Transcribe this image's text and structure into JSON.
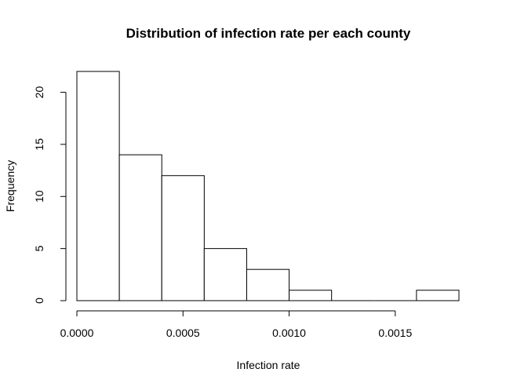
{
  "chart_data": {
    "type": "bar",
    "title": "Distribution of infection rate per each county",
    "xlabel": "Infection rate",
    "ylabel": "Frequency",
    "bin_edges": [
      0.0,
      0.0002,
      0.0004,
      0.0006,
      0.0008,
      0.001,
      0.0012,
      0.0014,
      0.0016,
      0.0018
    ],
    "values": [
      22,
      14,
      12,
      5,
      3,
      1,
      0,
      0,
      1
    ],
    "xlim": [
      0.0,
      0.0018
    ],
    "ylim": [
      0,
      22
    ],
    "x_ticks": [
      {
        "value": 0.0,
        "label": "0.0000"
      },
      {
        "value": 0.0005,
        "label": "0.0005"
      },
      {
        "value": 0.001,
        "label": "0.0010"
      },
      {
        "value": 0.0015,
        "label": "0.0015"
      }
    ],
    "y_ticks": [
      {
        "value": 0,
        "label": "0"
      },
      {
        "value": 5,
        "label": "5"
      },
      {
        "value": 10,
        "label": "10"
      },
      {
        "value": 15,
        "label": "15"
      },
      {
        "value": 20,
        "label": "20"
      }
    ],
    "grid": false,
    "legend": "none"
  }
}
